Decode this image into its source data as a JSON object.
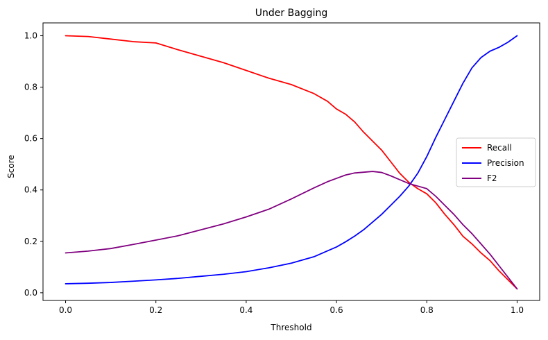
{
  "chart_data": {
    "type": "line",
    "title": "Under Bagging",
    "xlabel": "Threshold",
    "ylabel": "Score",
    "xlim": [
      -0.05,
      1.05
    ],
    "ylim": [
      -0.03,
      1.05
    ],
    "xticks": [
      0.0,
      0.2,
      0.4,
      0.6,
      0.8,
      1.0
    ],
    "xtick_labels": [
      "0.0",
      "0.2",
      "0.4",
      "0.6",
      "0.8",
      "1.0"
    ],
    "yticks": [
      0.0,
      0.2,
      0.4,
      0.6,
      0.8,
      1.0
    ],
    "ytick_labels": [
      "0.0",
      "0.2",
      "0.4",
      "0.6",
      "0.8",
      "1.0"
    ],
    "grid": false,
    "legend": "center-right",
    "x": [
      0.0,
      0.05,
      0.1,
      0.15,
      0.2,
      0.25,
      0.3,
      0.35,
      0.4,
      0.45,
      0.5,
      0.55,
      0.58,
      0.6,
      0.62,
      0.64,
      0.66,
      0.68,
      0.7,
      0.72,
      0.74,
      0.76,
      0.78,
      0.8,
      0.82,
      0.84,
      0.86,
      0.88,
      0.9,
      0.92,
      0.94,
      0.96,
      0.98,
      1.0
    ],
    "series": [
      {
        "name": "Recall",
        "color": "#ff0000",
        "values": [
          1.0,
          0.997,
          0.987,
          0.977,
          0.972,
          0.945,
          0.92,
          0.895,
          0.865,
          0.835,
          0.81,
          0.775,
          0.745,
          0.715,
          0.695,
          0.665,
          0.625,
          0.59,
          0.555,
          0.51,
          0.465,
          0.43,
          0.405,
          0.385,
          0.35,
          0.305,
          0.265,
          0.22,
          0.19,
          0.155,
          0.125,
          0.085,
          0.05,
          0.015
        ]
      },
      {
        "name": "Precision",
        "color": "#0000ff",
        "values": [
          0.035,
          0.037,
          0.04,
          0.045,
          0.05,
          0.056,
          0.064,
          0.072,
          0.082,
          0.097,
          0.115,
          0.14,
          0.163,
          0.178,
          0.198,
          0.22,
          0.245,
          0.275,
          0.305,
          0.34,
          0.375,
          0.415,
          0.465,
          0.53,
          0.605,
          0.675,
          0.745,
          0.815,
          0.875,
          0.915,
          0.94,
          0.955,
          0.975,
          1.0
        ]
      },
      {
        "name": "F2",
        "color": "#800080",
        "values": [
          0.155,
          0.162,
          0.172,
          0.188,
          0.205,
          0.222,
          0.245,
          0.268,
          0.295,
          0.325,
          0.365,
          0.408,
          0.432,
          0.445,
          0.458,
          0.466,
          0.469,
          0.472,
          0.468,
          0.455,
          0.44,
          0.425,
          0.415,
          0.405,
          0.375,
          0.34,
          0.305,
          0.265,
          0.23,
          0.19,
          0.15,
          0.105,
          0.06,
          0.015
        ]
      }
    ]
  }
}
